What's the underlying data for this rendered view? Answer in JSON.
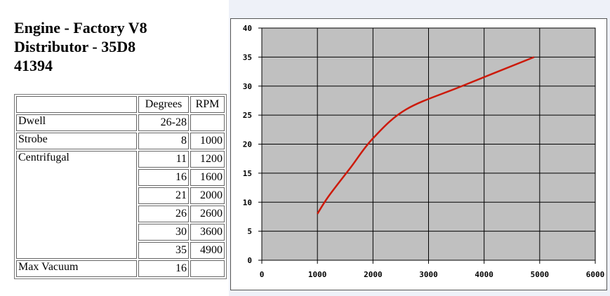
{
  "header": {
    "line1": "Engine - Factory V8",
    "line2": "Distributor - 35D8",
    "line3": "41394"
  },
  "spec_table": {
    "columns": [
      "",
      "Degrees",
      "RPM"
    ],
    "rows": [
      {
        "name": "Dwell",
        "degrees": "26-28",
        "rpm": ""
      },
      {
        "name": "Strobe",
        "degrees": "8",
        "rpm": "1000"
      },
      {
        "name": "Centrifugal",
        "degrees": "11",
        "rpm": "1200"
      },
      {
        "name": "",
        "degrees": "16",
        "rpm": "1600"
      },
      {
        "name": "",
        "degrees": "21",
        "rpm": "2000"
      },
      {
        "name": "",
        "degrees": "26",
        "rpm": "2600"
      },
      {
        "name": "",
        "degrees": "30",
        "rpm": "3600"
      },
      {
        "name": "",
        "degrees": "35",
        "rpm": "4900"
      },
      {
        "name": "Max Vacuum",
        "degrees": "16",
        "rpm": ""
      }
    ]
  },
  "chart_data": {
    "type": "line",
    "title": "",
    "xlabel": "",
    "ylabel": "",
    "xlim": [
      0,
      6000
    ],
    "ylim": [
      0,
      40
    ],
    "xticks": [
      0,
      1000,
      2000,
      3000,
      4000,
      5000,
      6000
    ],
    "yticks": [
      0,
      5,
      10,
      15,
      20,
      25,
      30,
      35,
      40
    ],
    "grid": true,
    "plot_background": "#c0c0c0",
    "series": [
      {
        "color": "#cc1a0a",
        "x": [
          1000,
          1200,
          1600,
          2000,
          2600,
          3600,
          4900
        ],
        "y": [
          8,
          11,
          16,
          21,
          26,
          30,
          35
        ]
      }
    ]
  }
}
